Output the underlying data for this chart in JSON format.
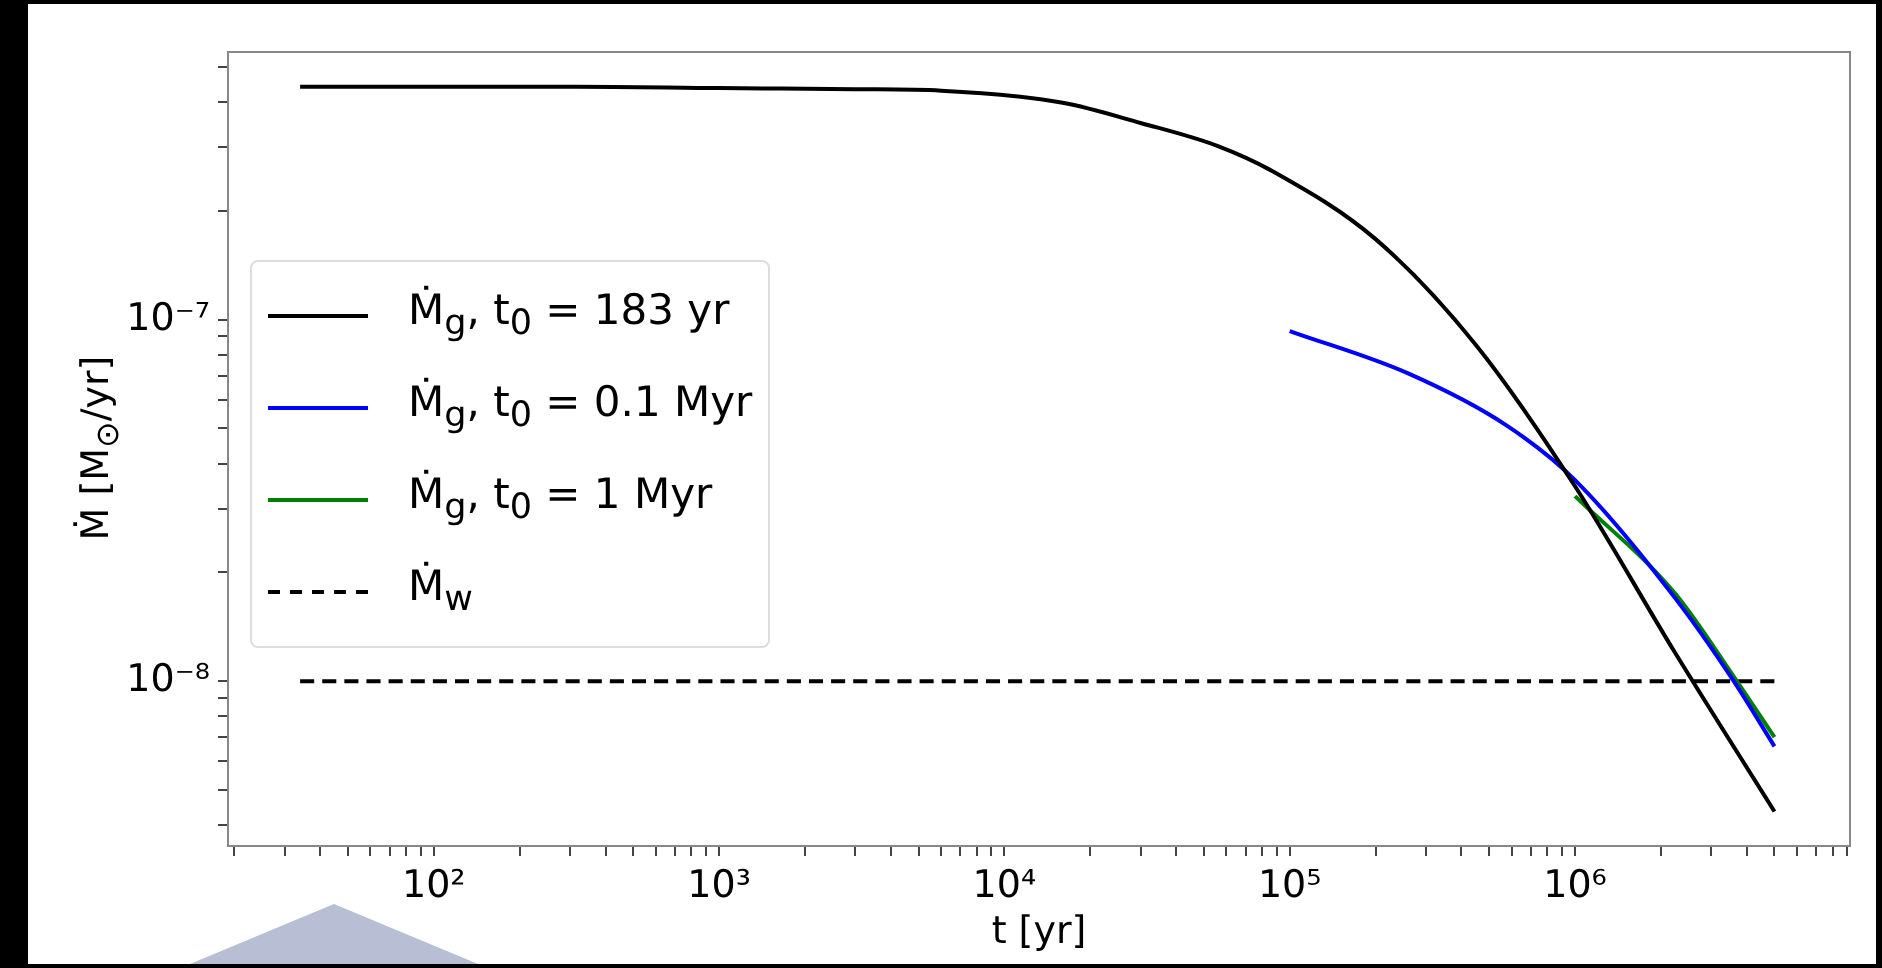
{
  "chart_data": {
    "type": "line",
    "xlabel": "t [yr]",
    "ylabel": "Ṁ [M$_{⊙}$/yr]",
    "log": "xy",
    "grid": false,
    "legend": "left",
    "marker": "none",
    "xlim": [
      19,
      9200000
    ],
    "ylim": [
      3.5e-09,
      5.5e-07
    ],
    "xticks": [
      {
        "value": 20,
        "label": null
      },
      {
        "value": 30,
        "label": null
      },
      {
        "value": 40,
        "label": null
      },
      {
        "value": 50,
        "label": null
      },
      {
        "value": 60,
        "label": null
      },
      {
        "value": 70,
        "label": null
      },
      {
        "value": 80,
        "label": null
      },
      {
        "value": 90,
        "label": null
      },
      {
        "value": 100,
        "label": "10²"
      },
      {
        "value": 200,
        "label": null
      },
      {
        "value": 300,
        "label": null
      },
      {
        "value": 400,
        "label": null
      },
      {
        "value": 500,
        "label": null
      },
      {
        "value": 600,
        "label": null
      },
      {
        "value": 700,
        "label": null
      },
      {
        "value": 800,
        "label": null
      },
      {
        "value": 900,
        "label": null
      },
      {
        "value": 1000,
        "label": "10³"
      },
      {
        "value": 2000,
        "label": null
      },
      {
        "value": 3000,
        "label": null
      },
      {
        "value": 4000,
        "label": null
      },
      {
        "value": 5000,
        "label": null
      },
      {
        "value": 6000,
        "label": null
      },
      {
        "value": 7000,
        "label": null
      },
      {
        "value": 8000,
        "label": null
      },
      {
        "value": 9000,
        "label": null
      },
      {
        "value": 10000,
        "label": "10⁴"
      },
      {
        "value": 20000,
        "label": null
      },
      {
        "value": 30000,
        "label": null
      },
      {
        "value": 40000,
        "label": null
      },
      {
        "value": 50000,
        "label": null
      },
      {
        "value": 60000,
        "label": null
      },
      {
        "value": 70000,
        "label": null
      },
      {
        "value": 80000,
        "label": null
      },
      {
        "value": 90000,
        "label": null
      },
      {
        "value": 100000,
        "label": "10⁵"
      },
      {
        "value": 200000,
        "label": null
      },
      {
        "value": 300000,
        "label": null
      },
      {
        "value": 400000,
        "label": null
      },
      {
        "value": 500000,
        "label": null
      },
      {
        "value": 600000,
        "label": null
      },
      {
        "value": 700000,
        "label": null
      },
      {
        "value": 800000,
        "label": null
      },
      {
        "value": 900000,
        "label": null
      },
      {
        "value": 1000000,
        "label": "10⁶"
      },
      {
        "value": 2000000,
        "label": null
      },
      {
        "value": 3000000,
        "label": null
      },
      {
        "value": 4000000,
        "label": null
      },
      {
        "value": 5000000,
        "label": null
      },
      {
        "value": 6000000,
        "label": null
      },
      {
        "value": 7000000,
        "label": null
      },
      {
        "value": 8000000,
        "label": null
      },
      {
        "value": 9000000,
        "label": null
      }
    ],
    "yticks": [
      {
        "value": 4e-09,
        "label": null
      },
      {
        "value": 5e-09,
        "label": null
      },
      {
        "value": 6e-09,
        "label": null
      },
      {
        "value": 7e-09,
        "label": null
      },
      {
        "value": 8e-09,
        "label": null
      },
      {
        "value": 9e-09,
        "label": null
      },
      {
        "value": 1e-08,
        "label": "10⁻⁸"
      },
      {
        "value": 2e-08,
        "label": null
      },
      {
        "value": 3e-08,
        "label": null
      },
      {
        "value": 4e-08,
        "label": null
      },
      {
        "value": 5e-08,
        "label": null
      },
      {
        "value": 6e-08,
        "label": null
      },
      {
        "value": 7e-08,
        "label": null
      },
      {
        "value": 8e-08,
        "label": null
      },
      {
        "value": 9e-08,
        "label": null
      },
      {
        "value": 1e-07,
        "label": "10⁻⁷"
      },
      {
        "value": 2e-07,
        "label": null
      },
      {
        "value": 3e-07,
        "label": null
      },
      {
        "value": 4e-07,
        "label": null
      },
      {
        "value": 5e-07,
        "label": null
      }
    ],
    "series": [
      {
        "name": "Ṁ$_{g}$, t$_{0}$ = 183 yr",
        "color": "#000000",
        "line_style": "solid",
        "x": [
          34,
          316,
          1000,
          3000,
          6000,
          16000,
          30000,
          56000,
          89000,
          200000,
          450000,
          1000000,
          2240000,
          5000000
        ],
        "values": [
          4.41e-07,
          4.41e-07,
          4.37e-07,
          4.34e-07,
          4.3e-07,
          3.98e-07,
          3.5e-07,
          3.02e-07,
          2.55e-07,
          1.67e-07,
          8.5e-08,
          3.46e-08,
          1.2e-08,
          4.36e-09
        ]
      },
      {
        "name": "Ṁ$_{g}$, t$_{0}$ = 0.1 Myr",
        "color": "#0000ff",
        "line_style": "solid",
        "x": [
          100000,
          260000,
          575000,
          1000000,
          2240000,
          3600000,
          5000000
        ],
        "values": [
          9.3e-08,
          7.1e-08,
          5.1e-08,
          3.6e-08,
          1.7e-08,
          1e-08,
          6.6e-09
        ]
      },
      {
        "name": "Ṁ$_{g}$, t$_{0}$ = 1 Myr",
        "color": "#008000",
        "line_style": "solid",
        "x": [
          1000000,
          2240000,
          3600000,
          5000000
        ],
        "values": [
          3.25e-08,
          1.75e-08,
          1.03e-08,
          7e-09
        ]
      },
      {
        "name": "Ṁ$_{w}$",
        "color": "#000000",
        "line_style": "dashed",
        "x": [
          34,
          5000000
        ],
        "values": [
          1e-08,
          1e-08
        ]
      }
    ]
  }
}
